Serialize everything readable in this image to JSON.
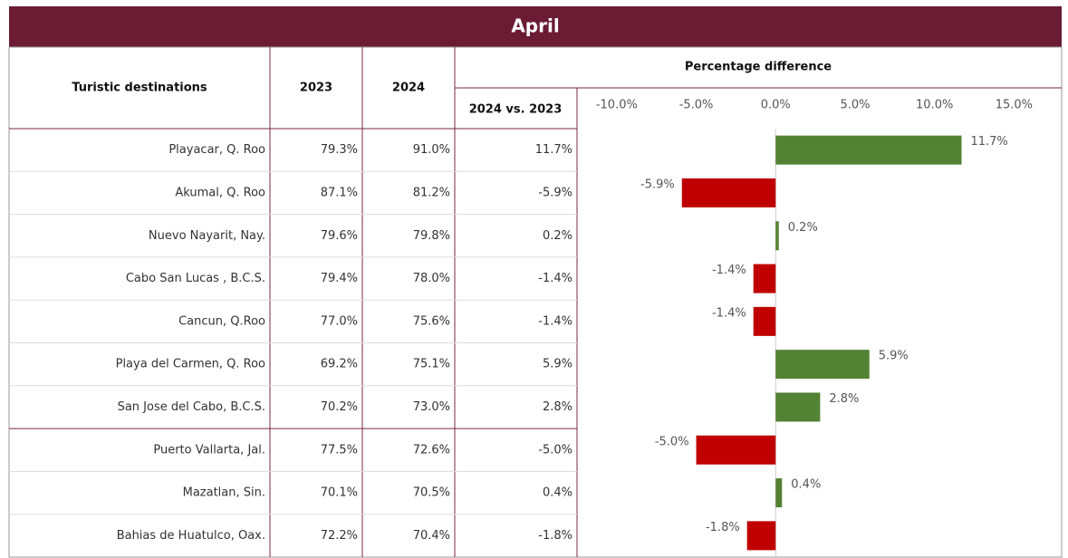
{
  "title": "April",
  "table": {
    "columns": [
      "Turistic destinations",
      "2023",
      "2024",
      "Percentage difference",
      "2024 vs. 2023"
    ],
    "rows": [
      [
        "79.3%",
        "91.0%"
      ],
      [
        "87.1%",
        "81.2%"
      ],
      [
        "79.6%",
        "79.8%"
      ],
      [
        "79.4%",
        "78.0%"
      ],
      [
        "77.0%",
        "75.6%"
      ],
      [
        "69.2%",
        "75.1%"
      ],
      [
        "70.2%",
        "73.0%"
      ],
      [
        "77.5%",
        "72.6%"
      ],
      [
        "70.1%",
        "70.5%"
      ],
      [
        "72.2%",
        "70.4%"
      ]
    ]
  },
  "chart_data": {
    "type": "bar",
    "orientation": "horizontal",
    "categories": [
      "Playacar, Q. Roo",
      "Akumal, Q. Roo",
      "Nuevo Nayarit, Nay.",
      "Cabo San Lucas , B.C.S.",
      "Cancun, Q.Roo",
      "Playa del Carmen, Q. Roo",
      "San Jose del Cabo, B.C.S.",
      "Puerto Vallarta, Jal.",
      "Mazatlan, Sin.",
      "Bahias de Huatulco, Oax."
    ],
    "values": [
      11.7,
      -5.9,
      0.2,
      -1.4,
      -1.4,
      5.9,
      2.8,
      -5.0,
      0.4,
      -1.8
    ],
    "value_labels": [
      "11.7%",
      "-5.9%",
      "0.2%",
      "-1.4%",
      "-1.4%",
      "5.9%",
      "2.8%",
      "-5.0%",
      "0.4%",
      "-1.8%"
    ],
    "positive_color": "#548235",
    "negative_color": "#c00000",
    "xlim": [
      -12.5,
      18
    ],
    "xticks": [
      {
        "value": -10,
        "label": "-10.0%"
      },
      {
        "value": -5,
        "label": "-5.0%"
      },
      {
        "value": 0,
        "label": "0.0%"
      },
      {
        "value": 5,
        "label": "5.0%"
      },
      {
        "value": 10,
        "label": "10.0%"
      },
      {
        "value": 15,
        "label": "15.0%"
      }
    ],
    "grid": false
  }
}
